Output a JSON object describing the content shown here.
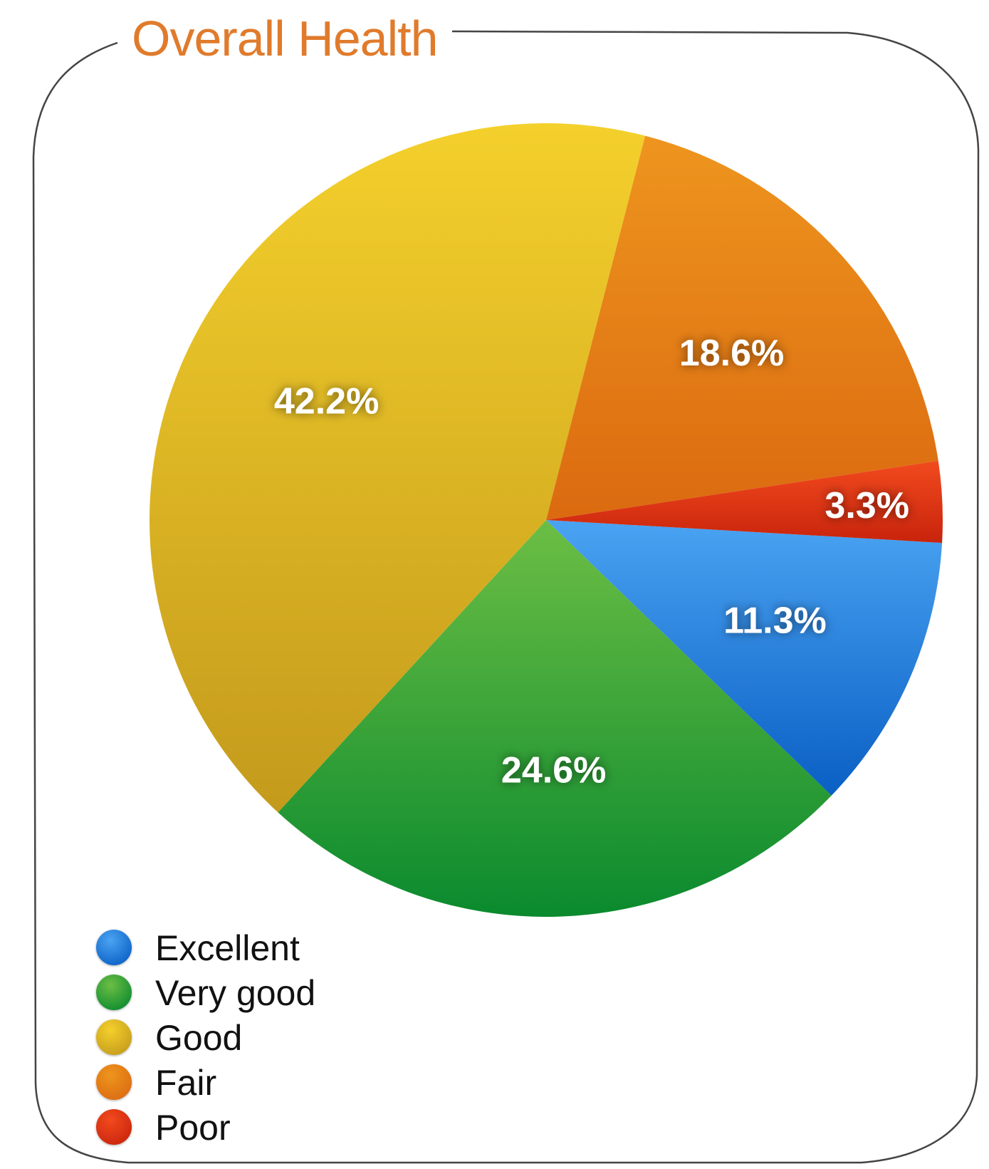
{
  "chart_data": {
    "type": "pie",
    "title": "Overall Health",
    "legend_position": "bottom-left",
    "slices": [
      {
        "name": "Excellent",
        "value": 11.3,
        "label": "11.3%",
        "color": "#2e86e0",
        "color_light": "#4aa3f2",
        "color_dark": "#0a5fc4"
      },
      {
        "name": "Very good",
        "value": 24.6,
        "label": "24.6%",
        "color": "#2f9e3a",
        "color_light": "#6cbe44",
        "color_dark": "#0a8a2e"
      },
      {
        "name": "Good",
        "value": 42.2,
        "label": "42.2%",
        "color": "#dcb524",
        "color_light": "#f4d02c",
        "color_dark": "#c49a1c"
      },
      {
        "name": "Fair",
        "value": 18.6,
        "label": "18.6%",
        "color": "#e88018",
        "color_light": "#ee951e",
        "color_dark": "#db6a10"
      },
      {
        "name": "Poor",
        "value": 3.3,
        "label": "3.3%",
        "color": "#e0321a",
        "color_light": "#f24a1e",
        "color_dark": "#c8240c"
      }
    ]
  }
}
